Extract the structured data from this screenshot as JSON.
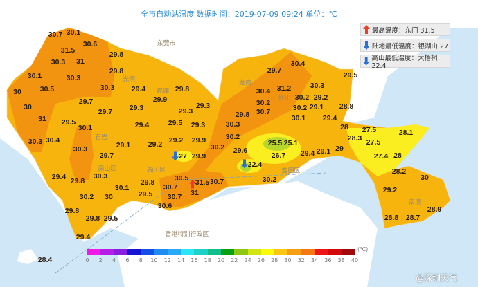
{
  "title": "全市自动站温度  数据时间：2019-07-09 09:24  单位：℃",
  "legend": {
    "items": [
      {
        "label": "最高温度：东门 31.5",
        "icon": "up-arrow-icon",
        "color": "#e8402a"
      },
      {
        "label": "陆地最低温度：银湖山 27",
        "icon": "down-arrow-icon",
        "color": "#2a6fd4"
      },
      {
        "label": "高山最低温度：大梧桐 22.4",
        "icon": "down-arrow-icon",
        "color": "#2a6fd4"
      }
    ]
  },
  "colorbar": {
    "ticks": [
      "0",
      "2",
      "4",
      "6",
      "8",
      "10",
      "12",
      "14",
      "16",
      "18",
      "20",
      "22",
      "24",
      "26",
      "28",
      "30",
      "32",
      "34",
      "36",
      "38",
      "40"
    ],
    "unit": "(℃)",
    "colors": [
      "#f019e6",
      "#b41ee6",
      "#8a1ee0",
      "#1414d2",
      "#1450e6",
      "#1e8cf0",
      "#28aaf5",
      "#28e6f5",
      "#1ed2c8",
      "#14be8c",
      "#0aa014",
      "#8cc814",
      "#d2e614",
      "#fafa0a",
      "#fac814",
      "#f5a014",
      "#f57814",
      "#f01414",
      "#d20a0a",
      "#a00a0a"
    ]
  },
  "stations": [
    "30.7",
    "30.1",
    "31.5",
    "30.6",
    "29.8",
    "30.3",
    "31",
    "29.8",
    "30.1",
    "30.3",
    "30.5",
    "30",
    "30.3",
    "29.7",
    "30",
    "29.7",
    "31",
    "29.5",
    "30.1",
    "30.3",
    "30.4",
    "30.3",
    "29.7",
    "29.4",
    "29.8",
    "30.3",
    "30.2",
    "30",
    "29.8",
    "29.8",
    "29.5",
    "29.4",
    "28.4",
    "29.4",
    "29.8",
    "29.9",
    "29.3",
    "29.3",
    "29.3",
    "29.4",
    "29.5",
    "29.3",
    "29.1",
    "29.2",
    "29.2",
    "29.9",
    "30.2",
    "29.9",
    "27",
    "30.5",
    "29.8",
    "30.1",
    "29.5",
    "30.7",
    "30.7",
    "31.5",
    "30.7",
    "31",
    "30.6",
    "29.7",
    "30.4",
    "30.4",
    "31.2",
    "30.3",
    "30.2",
    "30.2",
    "29.2",
    "30.7",
    "30.2",
    "29.1",
    "29.8",
    "30.1",
    "29.4",
    "28",
    "30.3",
    "29.5",
    "28.8",
    "30.2",
    "29.6",
    "25.5",
    "25.1",
    "26.7",
    "22.4",
    "29.4",
    "29.1",
    "29",
    "30.2",
    "27.5",
    "28.1",
    "28.3",
    "27.5",
    "27.4",
    "28",
    "28.2",
    "30",
    "29.2",
    "28.9",
    "28.8",
    "28.7"
  ],
  "places": [
    "东莞市",
    "香港特别行政区",
    "南山区",
    "福田区",
    "盐田区",
    "南澳",
    "光明",
    "观澜",
    "石岩",
    "坪山",
    "龙岗"
  ],
  "watermark": "@深圳天气"
}
